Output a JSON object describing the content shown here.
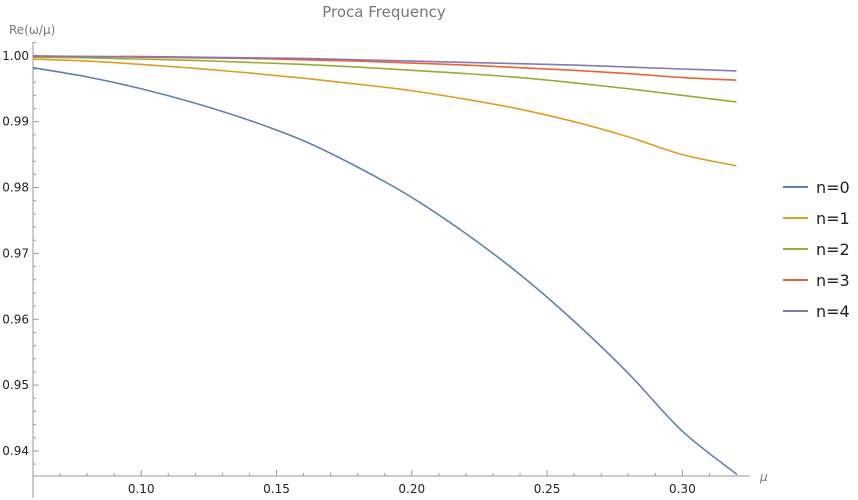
{
  "chart_data": {
    "type": "line",
    "title": "Proca Frequency",
    "xlabel": "μ",
    "ylabel": "Re(ω/μ)",
    "xlim": [
      0.06,
      0.325
    ],
    "ylim": [
      0.9362,
      1.0021
    ],
    "xticks": [
      0.1,
      0.15,
      0.2,
      0.25,
      0.3
    ],
    "xtick_labels": [
      "0.10",
      "0.15",
      "0.20",
      "0.25",
      "0.30"
    ],
    "yticks": [
      0.94,
      0.95,
      0.96,
      0.97,
      0.98,
      0.99,
      1.0
    ],
    "ytick_labels": [
      "0.94",
      "0.95",
      "0.96",
      "0.97",
      "0.98",
      "0.99",
      "1.00"
    ],
    "grid": false,
    "legend_position": "right",
    "x": [
      0.06,
      0.08,
      0.1,
      0.12,
      0.14,
      0.16,
      0.18,
      0.2,
      0.22,
      0.24,
      0.26,
      0.28,
      0.3,
      0.32
    ],
    "series": [
      {
        "name": "n=0",
        "color": "#5e81b5",
        "values": [
          0.9982,
          0.9968,
          0.995,
          0.9928,
          0.9902,
          0.9871,
          0.9831,
          0.9785,
          0.973,
          0.9668,
          0.9597,
          0.9518,
          0.943,
          0.9365
        ]
      },
      {
        "name": "n=1",
        "color": "#e19c24",
        "values": [
          0.9995,
          0.9992,
          0.9987,
          0.9981,
          0.9974,
          0.9966,
          0.9957,
          0.9947,
          0.9934,
          0.9919,
          0.99,
          0.9877,
          0.985,
          0.9833
        ]
      },
      {
        "name": "n=2",
        "color": "#8fb032",
        "values": [
          0.9998,
          0.9997,
          0.9995,
          0.9993,
          0.999,
          0.9987,
          0.9983,
          0.9978,
          0.9973,
          0.9967,
          0.9959,
          0.995,
          0.994,
          0.993
        ]
      },
      {
        "name": "n=3",
        "color": "#eb6235",
        "values": [
          0.9999,
          0.9999,
          0.9998,
          0.9997,
          0.9996,
          0.9994,
          0.9992,
          0.9989,
          0.9986,
          0.9982,
          0.9978,
          0.9973,
          0.9967,
          0.9963
        ]
      },
      {
        "name": "n=4",
        "color": "#8778b3",
        "values": [
          1.0,
          0.9999,
          0.9999,
          0.9998,
          0.9997,
          0.9996,
          0.9994,
          0.9992,
          0.999,
          0.9988,
          0.9986,
          0.9983,
          0.998,
          0.9977
        ]
      }
    ]
  }
}
